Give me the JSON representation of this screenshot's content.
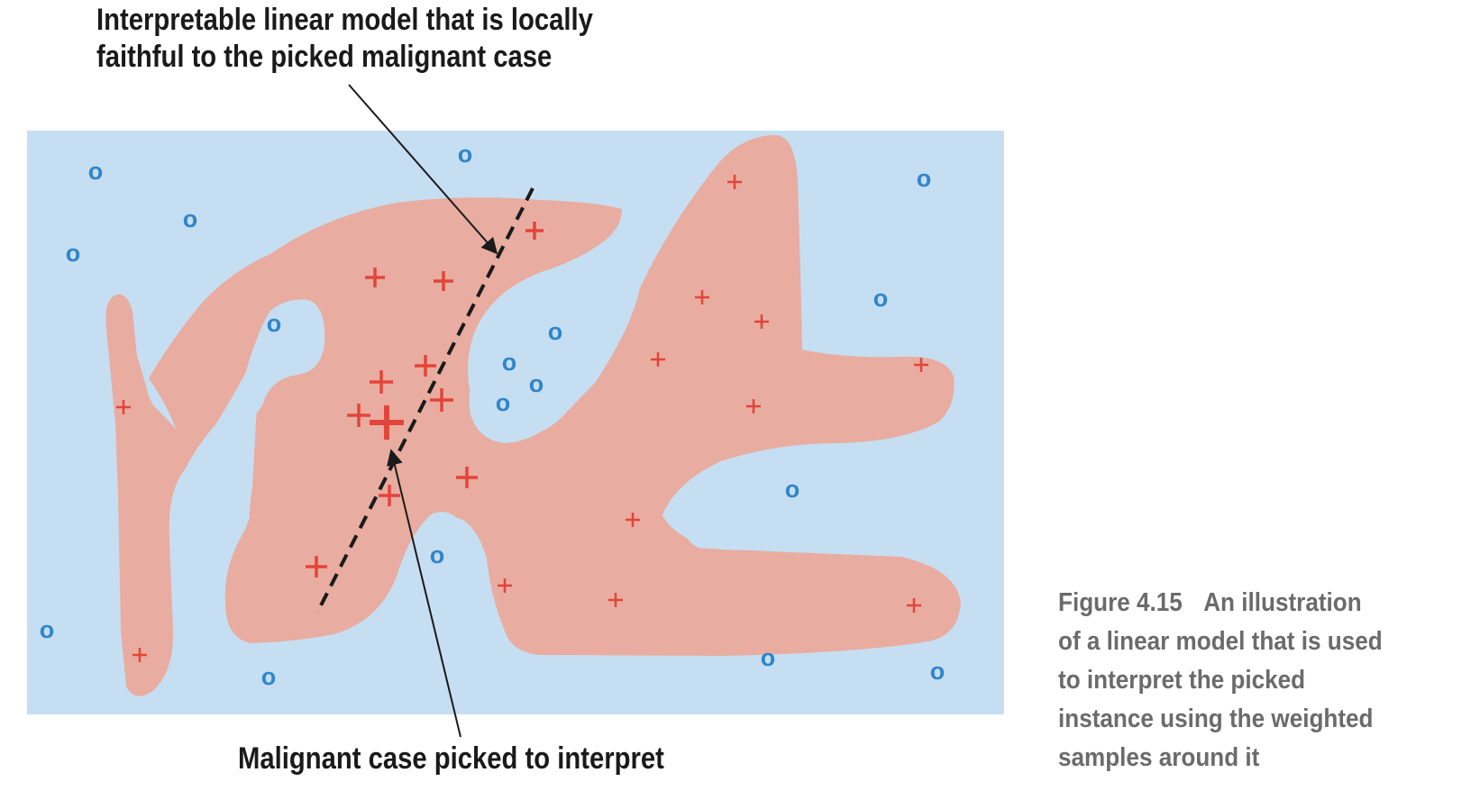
{
  "annotations": {
    "model_line1": "Interpretable linear model that is locally",
    "model_line2": "faithful to the picked malignant case",
    "picked_case": "Malignant case picked to interpret"
  },
  "caption": {
    "figure_label": "Figure 4.15",
    "lines": [
      "An illustration",
      "of a linear model that is used",
      "to interpret the picked",
      "instance using the weighted",
      "samples around it"
    ]
  },
  "colors": {
    "background_region": "#c6def2",
    "malignant_region": "#e8ada0",
    "benign_marker": "#2f86c9",
    "malignant_marker": "#e2453a",
    "caption_text": "#6b6b6b"
  },
  "markers": {
    "benign_symbol": "o",
    "malignant_symbol": "+"
  }
}
